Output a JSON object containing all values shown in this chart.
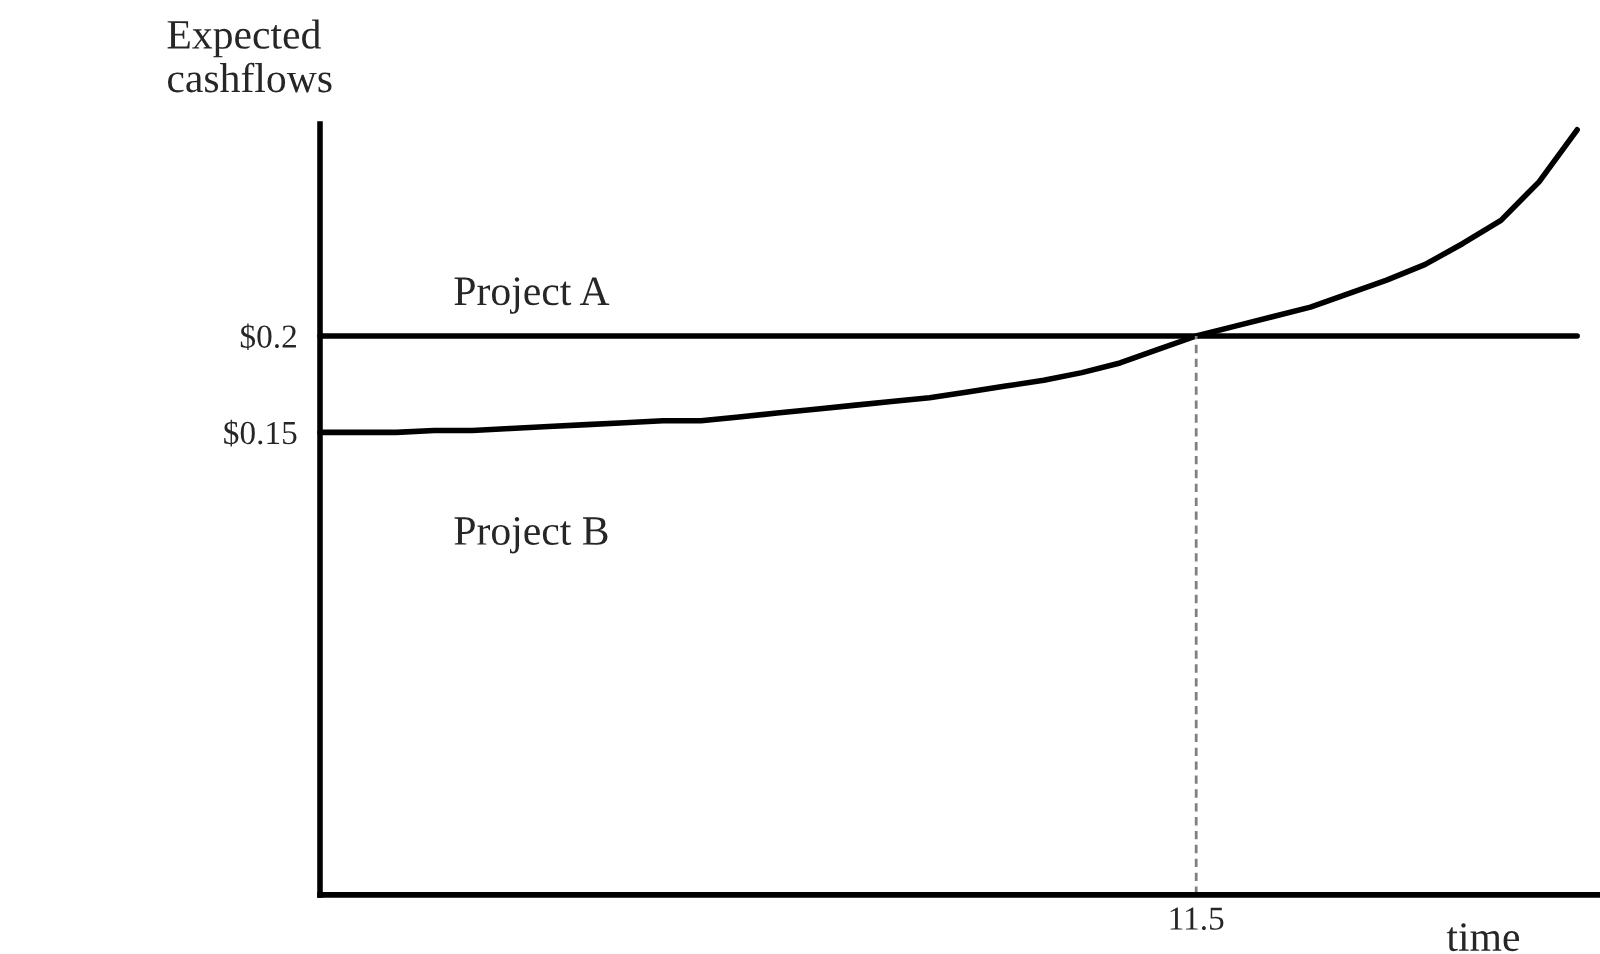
{
  "chart_data": {
    "type": "line",
    "xlabel": "time",
    "ylabel": "Expected\ncashflows",
    "categories": [
      null,
      null,
      null,
      null,
      null,
      null,
      null,
      null,
      null,
      null,
      null,
      null,
      null,
      null,
      null,
      null,
      null,
      null,
      null,
      null,
      null,
      null,
      null,
      null,
      null,
      null,
      null,
      null,
      null,
      null,
      null,
      null,
      null,
      null
    ],
    "ylim": [
      -0.09,
      0.31
    ],
    "yticks": [
      {
        "value": 0.15,
        "label": "$0.15"
      },
      {
        "value": 0.2,
        "label": "$0.2"
      }
    ],
    "series": [
      {
        "name": "Project A",
        "color": "#000000",
        "values": [
          0.2,
          0.2,
          0.2,
          0.2,
          0.2,
          0.2,
          0.2,
          0.2,
          0.2,
          0.2,
          0.2,
          0.2,
          0.2,
          0.2,
          0.2,
          0.2,
          0.2,
          0.2,
          0.2,
          0.2,
          0.2,
          0.2,
          0.2,
          0.2,
          0.2,
          0.2,
          0.2,
          0.2,
          0.2,
          0.2,
          0.2,
          0.2,
          0.2,
          0.2
        ]
      },
      {
        "name": "Project B",
        "color": "#000000",
        "values": [
          0.15,
          0.15,
          0.15,
          0.151,
          0.151,
          0.152,
          0.153,
          0.154,
          0.155,
          0.156,
          0.156,
          0.158,
          0.16,
          0.162,
          0.164,
          0.166,
          0.168,
          0.171,
          0.174,
          0.177,
          0.181,
          0.186,
          0.193,
          0.2,
          0.205,
          0.21,
          0.215,
          0.222,
          0.229,
          0.237,
          0.248,
          0.26,
          0.28,
          0.307
        ]
      }
    ],
    "annotations": [
      "11.5"
    ],
    "marker": "none",
    "grid": false,
    "legend": false
  }
}
